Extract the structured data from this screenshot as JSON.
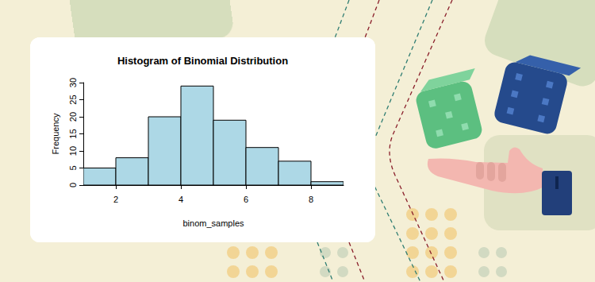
{
  "chart_data": {
    "type": "histogram",
    "title": "Histogram of Binomial Distribution",
    "x_label": "binom_samples",
    "y_label": "Frequency",
    "bins": [
      1,
      2,
      3,
      4,
      5,
      6,
      7,
      8,
      9
    ],
    "counts": [
      5,
      8,
      20,
      29,
      19,
      11,
      7,
      1
    ],
    "color": "#add8e6",
    "xlim": [
      1,
      9
    ],
    "xticks": [
      2,
      4,
      6,
      8
    ],
    "ylim": [
      0,
      30
    ],
    "yticks": [
      0,
      5,
      10,
      15,
      20,
      25,
      30
    ],
    "grid": false
  }
}
